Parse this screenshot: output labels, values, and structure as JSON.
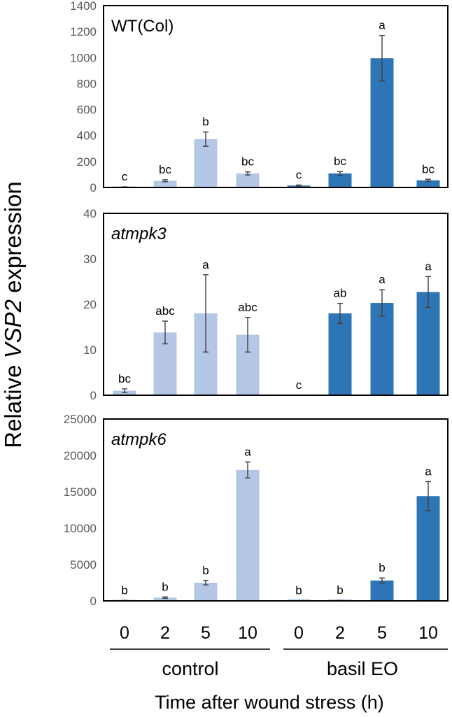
{
  "colors": {
    "control": "#b4c7e7",
    "basil": "#2e75b6",
    "error": "#404040",
    "frame": "#000000"
  },
  "y_axis_title": {
    "prefix": "Relative ",
    "gene": "VSP2",
    "suffix": " expression"
  },
  "x_axis_title": "Time after wound stress (h)",
  "groups": [
    {
      "name": "control",
      "times": [
        "0",
        "2",
        "5",
        "10"
      ]
    },
    {
      "name": "basil EO",
      "times": [
        "0",
        "2",
        "5",
        "10"
      ]
    }
  ],
  "chart_data": [
    {
      "type": "bar",
      "title": "WT(Col)",
      "title_italic": false,
      "categories": [
        "control 0",
        "control 2",
        "control 5",
        "control 10",
        "basil EO 0",
        "basil EO 2",
        "basil EO 5",
        "basil EO 10"
      ],
      "values": [
        3,
        52,
        372,
        108,
        15,
        108,
        995,
        55
      ],
      "errors": [
        2,
        8,
        55,
        12,
        4,
        15,
        175,
        8
      ],
      "labels": [
        "c",
        "bc",
        "b",
        "bc",
        "c",
        "bc",
        "a",
        "bc"
      ],
      "ylim": [
        0,
        1400
      ],
      "yticks": [
        0,
        200,
        400,
        600,
        800,
        1000,
        1200,
        1400
      ],
      "ytick_labels": [
        "0",
        "200",
        "400",
        "600",
        "800",
        "1000",
        "1200",
        "1400"
      ]
    },
    {
      "type": "bar",
      "title": "atmpk3",
      "title_italic": true,
      "categories": [
        "control 0",
        "control 2",
        "control 5",
        "control 10",
        "basil EO 0",
        "basil EO 2",
        "basil EO 5",
        "basil EO 10"
      ],
      "values": [
        1,
        13.8,
        18,
        13.3,
        0,
        18,
        20.3,
        22.7
      ],
      "errors": [
        0.4,
        2.5,
        8.5,
        3.8,
        0,
        2.2,
        2.9,
        3.4
      ],
      "labels": [
        "bc",
        "abc",
        "a",
        "abc",
        "c",
        "ab",
        "a",
        "a"
      ],
      "ylim": [
        0,
        40
      ],
      "yticks": [
        0,
        10,
        20,
        30,
        40
      ],
      "ytick_labels": [
        "0",
        "10",
        "20",
        "30",
        "40"
      ]
    },
    {
      "type": "bar",
      "title": "atmpk6",
      "title_italic": true,
      "categories": [
        "control 0",
        "control 2",
        "control 5",
        "control 10",
        "basil EO 0",
        "basil EO 2",
        "basil EO 5",
        "basil EO 10"
      ],
      "values": [
        50,
        450,
        2500,
        18000,
        30,
        60,
        2800,
        14400
      ],
      "errors": [
        20,
        100,
        300,
        1100,
        10,
        20,
        350,
        2000
      ],
      "labels": [
        "b",
        "b",
        "b",
        "a",
        "b",
        "b",
        "b",
        "a"
      ],
      "ylim": [
        0,
        25000
      ],
      "yticks": [
        0,
        5000,
        10000,
        15000,
        20000,
        25000
      ],
      "ytick_labels": [
        "0",
        "5000",
        "10000",
        "15000",
        "20000",
        "25000"
      ]
    }
  ]
}
